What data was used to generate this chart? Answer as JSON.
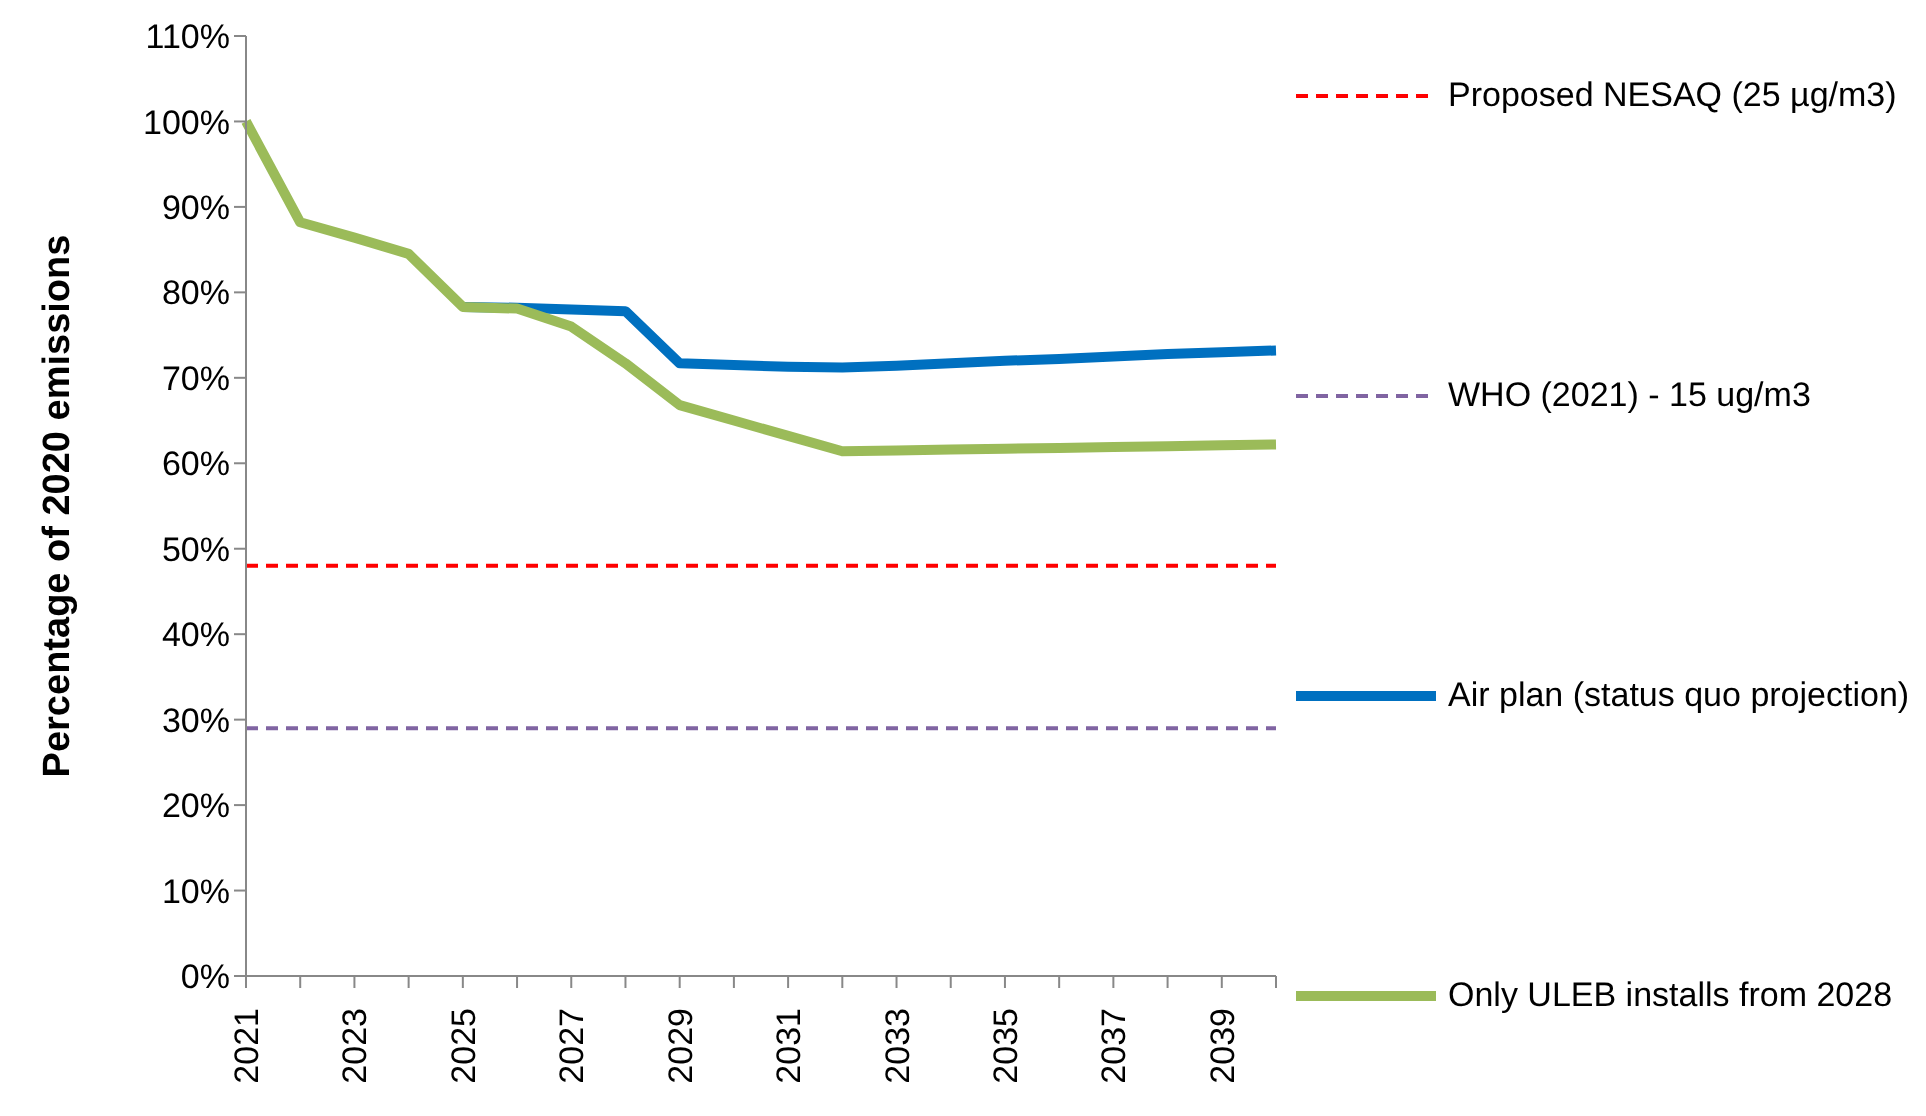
{
  "chart_data": {
    "type": "line",
    "ylabel": "Percentage of 2020 emissions",
    "categories": [
      "2021",
      null,
      "2023",
      null,
      "2025",
      null,
      "2027",
      null,
      "2029",
      null,
      "2031",
      null,
      "2033",
      null,
      "2035",
      null,
      "2037",
      null,
      "2039",
      null
    ],
    "series": [
      {
        "name": "Proposed NESAQ (25 µg/m3)",
        "color": "#ff0000",
        "line_style": "dashed",
        "values": [
          48,
          48,
          48,
          48,
          48,
          48,
          48,
          48,
          48,
          48,
          48,
          48,
          48,
          48,
          48,
          48,
          48,
          48,
          48,
          48
        ]
      },
      {
        "name": "WHO (2021) - 15 ug/m3",
        "color": "#8064a2",
        "line_style": "dashed",
        "values": [
          29,
          29,
          29,
          29,
          29,
          29,
          29,
          29,
          29,
          29,
          29,
          29,
          29,
          29,
          29,
          29,
          29,
          29,
          29,
          29
        ]
      },
      {
        "name": "Air plan (status quo projection)",
        "color": "#0070c0",
        "line_style": "solid",
        "values": [
          null,
          null,
          null,
          null,
          78.3,
          78.2,
          78,
          77.8,
          71.7,
          71.5,
          71.3,
          71.2,
          71.4,
          71.7,
          72,
          72.2,
          72.5,
          72.8,
          73,
          73.2
        ]
      },
      {
        "name": "Only ULEB installs from 2028",
        "color": "#9bbb59",
        "line_style": "solid",
        "values": [
          100,
          88.2,
          86.4,
          84.5,
          78.3,
          78.1,
          76,
          71.7,
          66.8,
          65,
          63.2,
          61.4,
          61.5,
          61.6,
          61.7,
          61.8,
          61.9,
          62,
          62.1,
          62.2
        ]
      }
    ],
    "ylim": [
      0,
      110
    ],
    "yticks": [
      {
        "value": 0,
        "label": "0%"
      },
      {
        "value": 10,
        "label": "10%"
      },
      {
        "value": 20,
        "label": "20%"
      },
      {
        "value": 30,
        "label": "30%"
      },
      {
        "value": 40,
        "label": "40%"
      },
      {
        "value": 50,
        "label": "50%"
      },
      {
        "value": 60,
        "label": "60%"
      },
      {
        "value": 70,
        "label": "70%"
      },
      {
        "value": 80,
        "label": "80%"
      },
      {
        "value": 90,
        "label": "90%"
      },
      {
        "value": 100,
        "label": "100%"
      },
      {
        "value": 110,
        "label": "110%"
      }
    ],
    "grid": false,
    "legend": "right",
    "marker": "none"
  }
}
